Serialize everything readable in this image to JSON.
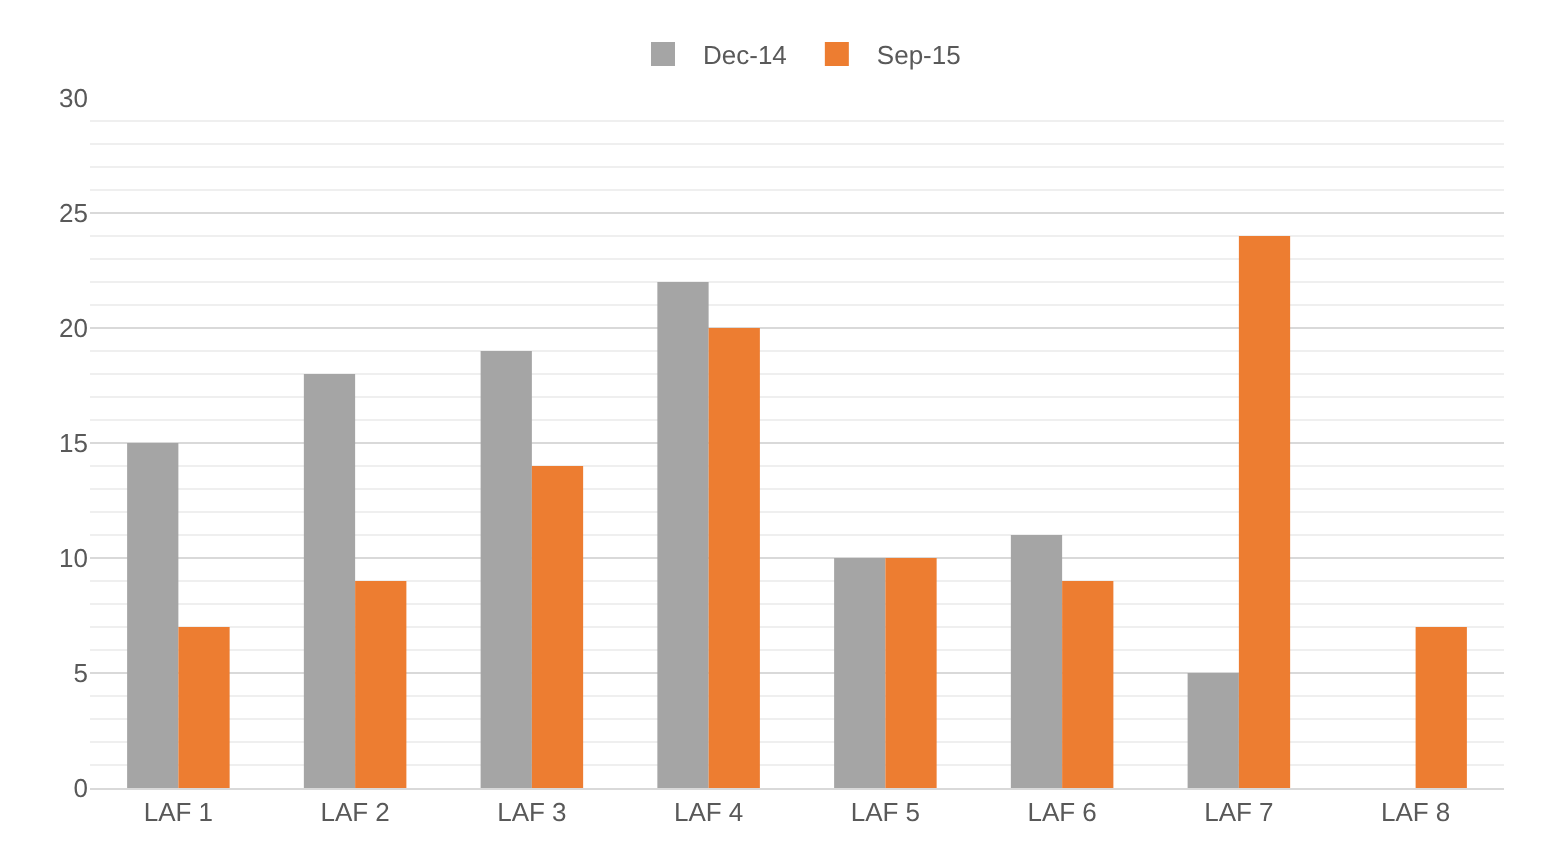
{
  "chart_data": {
    "type": "bar",
    "categories": [
      "LAF 1",
      "LAF 2",
      "LAF 3",
      "LAF 4",
      "LAF 5",
      "LAF 6",
      "LAF 7",
      "LAF 8"
    ],
    "series": [
      {
        "name": "Dec-14",
        "color": "#a5a5a5",
        "values": [
          15,
          18,
          19,
          22,
          10,
          11,
          5,
          null
        ]
      },
      {
        "name": "Sep-15",
        "color": "#ed7d31",
        "values": [
          7,
          9,
          14,
          20,
          10,
          9,
          24,
          7
        ]
      }
    ],
    "ylim": [
      0,
      30
    ],
    "yticks": [
      0,
      5,
      10,
      15,
      20,
      25,
      30
    ],
    "grid": "y",
    "legend": "top"
  }
}
